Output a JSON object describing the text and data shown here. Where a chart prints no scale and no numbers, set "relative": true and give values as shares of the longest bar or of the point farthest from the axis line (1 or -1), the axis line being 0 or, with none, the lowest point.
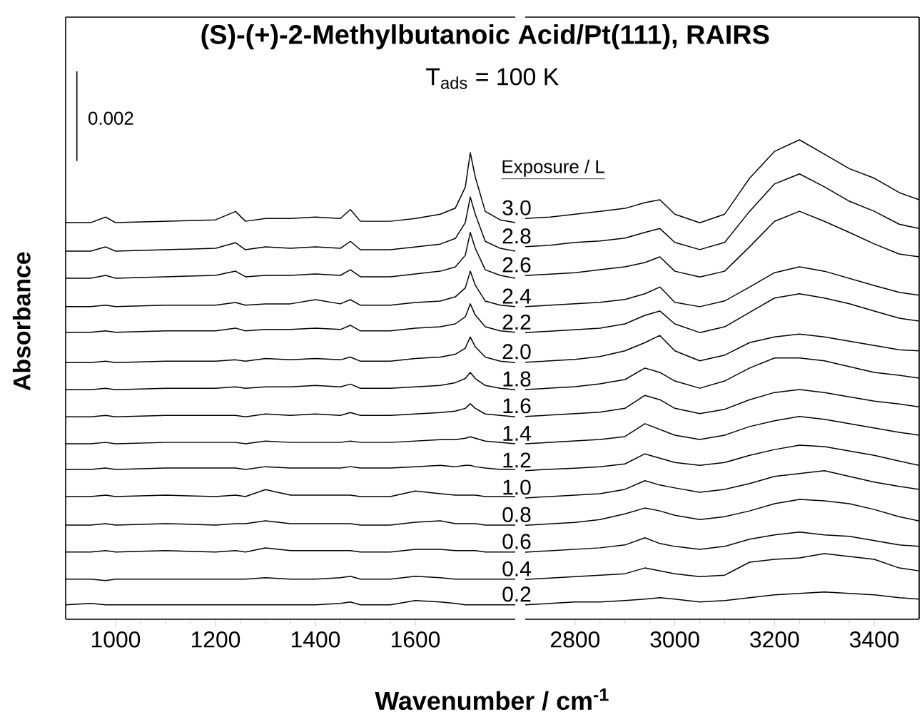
{
  "chart_data": [
    {
      "type": "line",
      "relative": true,
      "title": "(S)-(+)-2-Methylbutanoic Acid/Pt(111), RAIRS",
      "subtitle": "T$_{ads}$ = 100 K",
      "xlabel": "Wavenumber / cm$^{-1}$",
      "ylabel": "Absorbance",
      "annotations": [
        "0.002"
      ],
      "xlim": [
        900,
        1800
      ],
      "xticks": [
        1000,
        1200,
        1400,
        1600
      ],
      "x": [
        900,
        950,
        980,
        1000,
        1100,
        1200,
        1240,
        1260,
        1300,
        1350,
        1400,
        1450,
        1470,
        1490,
        1550,
        1600,
        1650,
        1680,
        1700,
        1710,
        1720,
        1740,
        1770,
        1800
      ],
      "series": [
        {
          "color": "#000000",
          "values": [
            0.85,
            0.85,
            0.862,
            0.85,
            0.853,
            0.856,
            0.874,
            0.853,
            0.859,
            0.859,
            0.862,
            0.859,
            0.878,
            0.853,
            0.853,
            0.859,
            0.868,
            0.881,
            0.926,
            1.0,
            0.948,
            0.874,
            0.856,
            0.85
          ]
        },
        {
          "color": "#000000",
          "values": [
            0.789,
            0.789,
            0.798,
            0.789,
            0.792,
            0.795,
            0.807,
            0.792,
            0.798,
            0.795,
            0.798,
            0.795,
            0.81,
            0.792,
            0.792,
            0.798,
            0.804,
            0.816,
            0.85,
            0.905,
            0.868,
            0.81,
            0.795,
            0.789
          ]
        },
        {
          "color": "#000000",
          "values": [
            0.731,
            0.731,
            0.737,
            0.731,
            0.734,
            0.737,
            0.746,
            0.734,
            0.737,
            0.737,
            0.74,
            0.737,
            0.749,
            0.734,
            0.734,
            0.74,
            0.746,
            0.755,
            0.78,
            0.829,
            0.795,
            0.749,
            0.737,
            0.731
          ]
        },
        {
          "color": "#000000",
          "values": [
            0.67,
            0.67,
            0.673,
            0.67,
            0.673,
            0.673,
            0.679,
            0.673,
            0.676,
            0.676,
            0.685,
            0.676,
            0.685,
            0.673,
            0.673,
            0.679,
            0.682,
            0.691,
            0.71,
            0.746,
            0.716,
            0.682,
            0.673,
            0.67
          ]
        },
        {
          "color": "#000000",
          "values": [
            0.615,
            0.615,
            0.618,
            0.615,
            0.618,
            0.618,
            0.624,
            0.618,
            0.621,
            0.621,
            0.624,
            0.621,
            0.63,
            0.618,
            0.618,
            0.624,
            0.627,
            0.633,
            0.648,
            0.676,
            0.652,
            0.627,
            0.618,
            0.615
          ]
        },
        {
          "color": "#000000",
          "values": [
            0.55,
            0.55,
            0.553,
            0.55,
            0.553,
            0.553,
            0.556,
            0.553,
            0.559,
            0.556,
            0.559,
            0.556,
            0.562,
            0.553,
            0.553,
            0.559,
            0.562,
            0.568,
            0.581,
            0.605,
            0.584,
            0.562,
            0.553,
            0.55
          ]
        },
        {
          "color": "#000000",
          "values": [
            0.492,
            0.492,
            0.495,
            0.492,
            0.495,
            0.495,
            0.498,
            0.495,
            0.498,
            0.498,
            0.501,
            0.498,
            0.504,
            0.495,
            0.495,
            0.498,
            0.501,
            0.507,
            0.516,
            0.529,
            0.516,
            0.501,
            0.495,
            0.492
          ]
        },
        {
          "color": "#000000",
          "values": [
            0.434,
            0.434,
            0.437,
            0.434,
            0.437,
            0.437,
            0.437,
            0.434,
            0.44,
            0.437,
            0.44,
            0.437,
            0.443,
            0.437,
            0.437,
            0.44,
            0.443,
            0.446,
            0.452,
            0.462,
            0.452,
            0.44,
            0.437,
            0.434
          ]
        },
        {
          "color": "#000000",
          "values": [
            0.376,
            0.376,
            0.379,
            0.376,
            0.379,
            0.379,
            0.379,
            0.376,
            0.382,
            0.379,
            0.379,
            0.379,
            0.382,
            0.379,
            0.379,
            0.382,
            0.385,
            0.385,
            0.388,
            0.391,
            0.388,
            0.382,
            0.379,
            0.376
          ]
        },
        {
          "color": "#000000",
          "values": [
            0.321,
            0.321,
            0.324,
            0.321,
            0.324,
            0.324,
            0.324,
            0.321,
            0.327,
            0.324,
            0.324,
            0.324,
            0.327,
            0.324,
            0.324,
            0.327,
            0.33,
            0.327,
            0.33,
            0.33,
            0.327,
            0.324,
            0.321,
            0.321
          ]
        },
        {
          "color": "#000000",
          "values": [
            0.263,
            0.263,
            0.266,
            0.263,
            0.266,
            0.263,
            0.266,
            0.263,
            0.278,
            0.266,
            0.266,
            0.266,
            0.266,
            0.263,
            0.263,
            0.275,
            0.269,
            0.266,
            0.266,
            0.266,
            0.266,
            0.263,
            0.263,
            0.263
          ]
        },
        {
          "color": "#000000",
          "values": [
            0.202,
            0.202,
            0.205,
            0.202,
            0.205,
            0.202,
            0.205,
            0.205,
            0.211,
            0.205,
            0.205,
            0.205,
            0.205,
            0.202,
            0.202,
            0.208,
            0.211,
            0.205,
            0.205,
            0.205,
            0.205,
            0.202,
            0.202,
            0.202
          ]
        },
        {
          "color": "#000000",
          "values": [
            0.144,
            0.144,
            0.147,
            0.144,
            0.147,
            0.144,
            0.147,
            0.144,
            0.153,
            0.147,
            0.147,
            0.147,
            0.147,
            0.144,
            0.144,
            0.15,
            0.15,
            0.147,
            0.147,
            0.147,
            0.147,
            0.144,
            0.144,
            0.144
          ]
        },
        {
          "color": "#000000",
          "values": [
            0.086,
            0.086,
            0.083,
            0.086,
            0.086,
            0.086,
            0.086,
            0.086,
            0.089,
            0.086,
            0.086,
            0.089,
            0.092,
            0.086,
            0.086,
            0.092,
            0.089,
            0.086,
            0.086,
            0.086,
            0.086,
            0.086,
            0.086,
            0.086
          ]
        },
        {
          "color": "#000000",
          "values": [
            0.031,
            0.034,
            0.031,
            0.031,
            0.031,
            0.031,
            0.031,
            0.031,
            0.031,
            0.031,
            0.031,
            0.034,
            0.037,
            0.031,
            0.031,
            0.04,
            0.037,
            0.034,
            0.031,
            0.031,
            0.031,
            0.031,
            0.031,
            0.031
          ]
        }
      ]
    },
    {
      "type": "line",
      "relative": true,
      "legend_title": "Exposure / L",
      "xlim": [
        2700,
        3490
      ],
      "xticks": [
        2800,
        3000,
        3200,
        3400
      ],
      "x": [
        2700,
        2750,
        2800,
        2850,
        2900,
        2940,
        2970,
        3000,
        3050,
        3100,
        3150,
        3200,
        3250,
        3300,
        3350,
        3400,
        3450,
        3490
      ],
      "series": [
        {
          "name": "3.0",
          "color": "#000000",
          "values": [
            0.836,
            0.839,
            0.845,
            0.851,
            0.857,
            0.869,
            0.875,
            0.845,
            0.827,
            0.845,
            0.92,
            0.976,
            1.0,
            0.97,
            0.94,
            0.92,
            0.89,
            0.875
          ]
        },
        {
          "name": "2.8",
          "color": "#000000",
          "values": [
            0.777,
            0.78,
            0.786,
            0.789,
            0.795,
            0.807,
            0.815,
            0.786,
            0.771,
            0.786,
            0.851,
            0.908,
            0.929,
            0.902,
            0.872,
            0.851,
            0.824,
            0.815
          ]
        },
        {
          "name": "2.6",
          "color": "#000000",
          "values": [
            0.717,
            0.72,
            0.723,
            0.729,
            0.735,
            0.744,
            0.756,
            0.726,
            0.714,
            0.726,
            0.777,
            0.83,
            0.851,
            0.83,
            0.807,
            0.783,
            0.762,
            0.756
          ]
        },
        {
          "name": "2.4",
          "color": "#000000",
          "values": [
            0.652,
            0.655,
            0.658,
            0.661,
            0.667,
            0.679,
            0.693,
            0.661,
            0.652,
            0.664,
            0.693,
            0.723,
            0.735,
            0.726,
            0.711,
            0.696,
            0.682,
            0.676
          ]
        },
        {
          "name": "2.2",
          "color": "#000000",
          "values": [
            0.598,
            0.601,
            0.604,
            0.607,
            0.616,
            0.634,
            0.643,
            0.616,
            0.598,
            0.61,
            0.64,
            0.67,
            0.679,
            0.67,
            0.658,
            0.643,
            0.628,
            0.622
          ]
        },
        {
          "name": "2.0",
          "color": "#000000",
          "values": [
            0.536,
            0.539,
            0.542,
            0.548,
            0.56,
            0.577,
            0.592,
            0.56,
            0.539,
            0.551,
            0.577,
            0.589,
            0.595,
            0.589,
            0.58,
            0.571,
            0.562,
            0.56
          ]
        },
        {
          "name": "1.8",
          "color": "#000000",
          "values": [
            0.479,
            0.482,
            0.485,
            0.491,
            0.5,
            0.524,
            0.515,
            0.497,
            0.482,
            0.497,
            0.524,
            0.545,
            0.545,
            0.539,
            0.527,
            0.515,
            0.509,
            0.503
          ]
        },
        {
          "name": "1.6",
          "color": "#000000",
          "values": [
            0.423,
            0.426,
            0.429,
            0.432,
            0.44,
            0.467,
            0.458,
            0.44,
            0.429,
            0.438,
            0.458,
            0.473,
            0.479,
            0.473,
            0.464,
            0.455,
            0.449,
            0.443
          ]
        },
        {
          "name": "1.4",
          "color": "#000000",
          "values": [
            0.366,
            0.369,
            0.372,
            0.375,
            0.381,
            0.408,
            0.396,
            0.384,
            0.375,
            0.384,
            0.402,
            0.414,
            0.423,
            0.417,
            0.408,
            0.399,
            0.39,
            0.384
          ]
        },
        {
          "name": "1.2",
          "color": "#000000",
          "values": [
            0.31,
            0.313,
            0.315,
            0.318,
            0.324,
            0.345,
            0.336,
            0.327,
            0.321,
            0.327,
            0.342,
            0.354,
            0.363,
            0.36,
            0.351,
            0.342,
            0.33,
            0.321
          ]
        },
        {
          "name": "1.0",
          "color": "#000000",
          "values": [
            0.253,
            0.256,
            0.259,
            0.262,
            0.271,
            0.289,
            0.28,
            0.274,
            0.265,
            0.271,
            0.283,
            0.298,
            0.304,
            0.31,
            0.298,
            0.286,
            0.277,
            0.271
          ]
        },
        {
          "name": "0.8",
          "color": "#000000",
          "values": [
            0.196,
            0.199,
            0.202,
            0.208,
            0.22,
            0.232,
            0.226,
            0.217,
            0.208,
            0.214,
            0.226,
            0.241,
            0.25,
            0.247,
            0.241,
            0.229,
            0.214,
            0.205
          ]
        },
        {
          "name": "0.6",
          "color": "#000000",
          "values": [
            0.14,
            0.143,
            0.146,
            0.149,
            0.155,
            0.17,
            0.158,
            0.152,
            0.146,
            0.152,
            0.167,
            0.176,
            0.182,
            0.176,
            0.173,
            0.164,
            0.155,
            0.152
          ]
        },
        {
          "name": "0.4",
          "color": "#000000",
          "values": [
            0.083,
            0.086,
            0.089,
            0.092,
            0.095,
            0.107,
            0.101,
            0.095,
            0.089,
            0.092,
            0.119,
            0.125,
            0.128,
            0.137,
            0.131,
            0.125,
            0.107,
            0.101
          ]
        },
        {
          "name": "0.2",
          "color": "#000000",
          "values": [
            0.03,
            0.033,
            0.036,
            0.036,
            0.039,
            0.042,
            0.045,
            0.042,
            0.036,
            0.039,
            0.045,
            0.051,
            0.054,
            0.057,
            0.054,
            0.051,
            0.045,
            0.042
          ]
        }
      ]
    }
  ]
}
